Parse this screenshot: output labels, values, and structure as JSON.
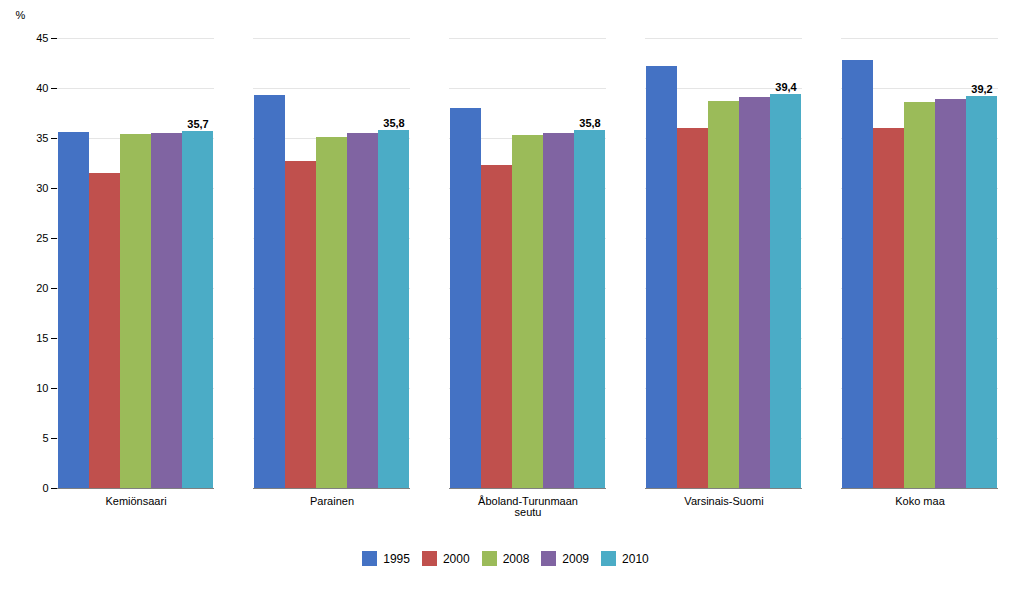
{
  "chart_data": {
    "type": "bar",
    "categories": [
      "Kemiönsaari",
      "Parainen",
      "Åboland-Turunmaan\nseutu",
      "Varsinais-Suomi",
      "Koko maa"
    ],
    "series": [
      {
        "name": "1995",
        "color": "#4472C4",
        "values": [
          35.6,
          39.3,
          38.0,
          42.2,
          42.8
        ]
      },
      {
        "name": "2000",
        "color": "#C0504D",
        "values": [
          31.5,
          32.7,
          32.3,
          36.0,
          36.0
        ]
      },
      {
        "name": "2008",
        "color": "#9BBB59",
        "values": [
          35.4,
          35.1,
          35.3,
          38.7,
          38.6
        ]
      },
      {
        "name": "2009",
        "color": "#8064A2",
        "values": [
          35.5,
          35.5,
          35.5,
          39.1,
          38.9
        ]
      },
      {
        "name": "2010",
        "color": "#4BACC6",
        "values": [
          35.7,
          35.8,
          35.8,
          39.4,
          39.2
        ],
        "data_labels": true,
        "value_labels": [
          "35,7",
          "35,8",
          "35,8",
          "39,4",
          "39,2"
        ]
      }
    ],
    "ylabel": "%",
    "ylim": [
      0,
      45
    ],
    "yticks": [
      0,
      5,
      10,
      15,
      20,
      25,
      30,
      35,
      40,
      45
    ],
    "grid": true,
    "legend": "bottom"
  }
}
